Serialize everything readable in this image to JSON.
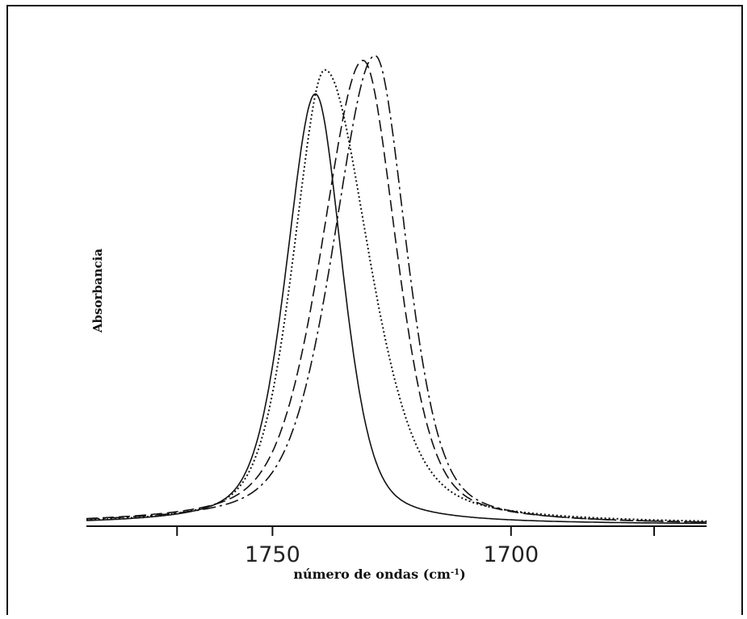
{
  "chart_data": {
    "type": "line",
    "xlabel": "número de ondas (cm",
    "xlabel_sup": "-1",
    "xlabel_close": ")",
    "ylabel": "Absorbancia",
    "xlim": [
      1789,
      1659
    ],
    "x_reversed": true,
    "ticks": [
      1770,
      1750,
      1700,
      1670
    ],
    "tick_labels": [
      {
        "x": 1750,
        "label": "1750"
      },
      {
        "x": 1700,
        "label": "1700"
      }
    ],
    "grid": false,
    "legend": "none",
    "series": [
      {
        "style": "solid",
        "peak_x": 1741.0,
        "width_left": 7,
        "width_right": 6.5,
        "tail": 0.1
      },
      {
        "style": "dotted",
        "peak_x": 1739.0,
        "width_left": 7.5,
        "width_right": 10.5,
        "tail": 0.05
      },
      {
        "style": "dashed",
        "peak_x": 1731.0,
        "width_left": 10,
        "width_right": 8,
        "tail": 0.03
      },
      {
        "style": "dashdot",
        "peak_x": 1728.5,
        "width_left": 10,
        "width_right": 7.5,
        "tail": 0.02
      }
    ]
  }
}
